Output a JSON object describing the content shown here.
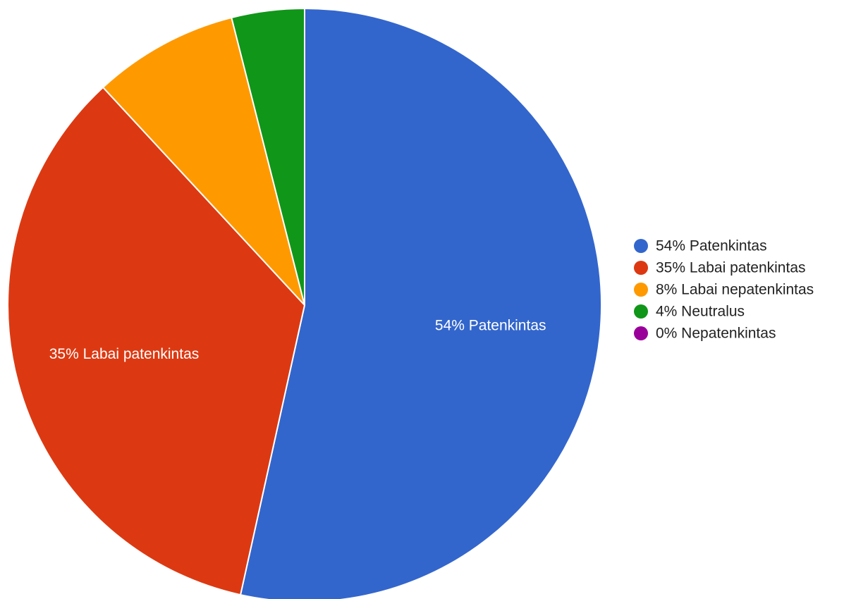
{
  "chart_data": {
    "type": "pie",
    "title": "",
    "legend_position": "right",
    "slices": [
      {
        "label": "54% Patenkintas",
        "value": 54,
        "color": "#3366cc",
        "show_label": true
      },
      {
        "label": "35% Labai patenkintas",
        "value": 35,
        "color": "#dc3912",
        "show_label": true
      },
      {
        "label": "8% Labai nepatenkintas",
        "value": 8,
        "color": "#ff9900",
        "show_label": false
      },
      {
        "label": "4% Neutralus",
        "value": 4,
        "color": "#109618",
        "show_label": false
      },
      {
        "label": "0% Nepatenkintas",
        "value": 0,
        "color": "#990099",
        "show_label": false
      }
    ]
  }
}
